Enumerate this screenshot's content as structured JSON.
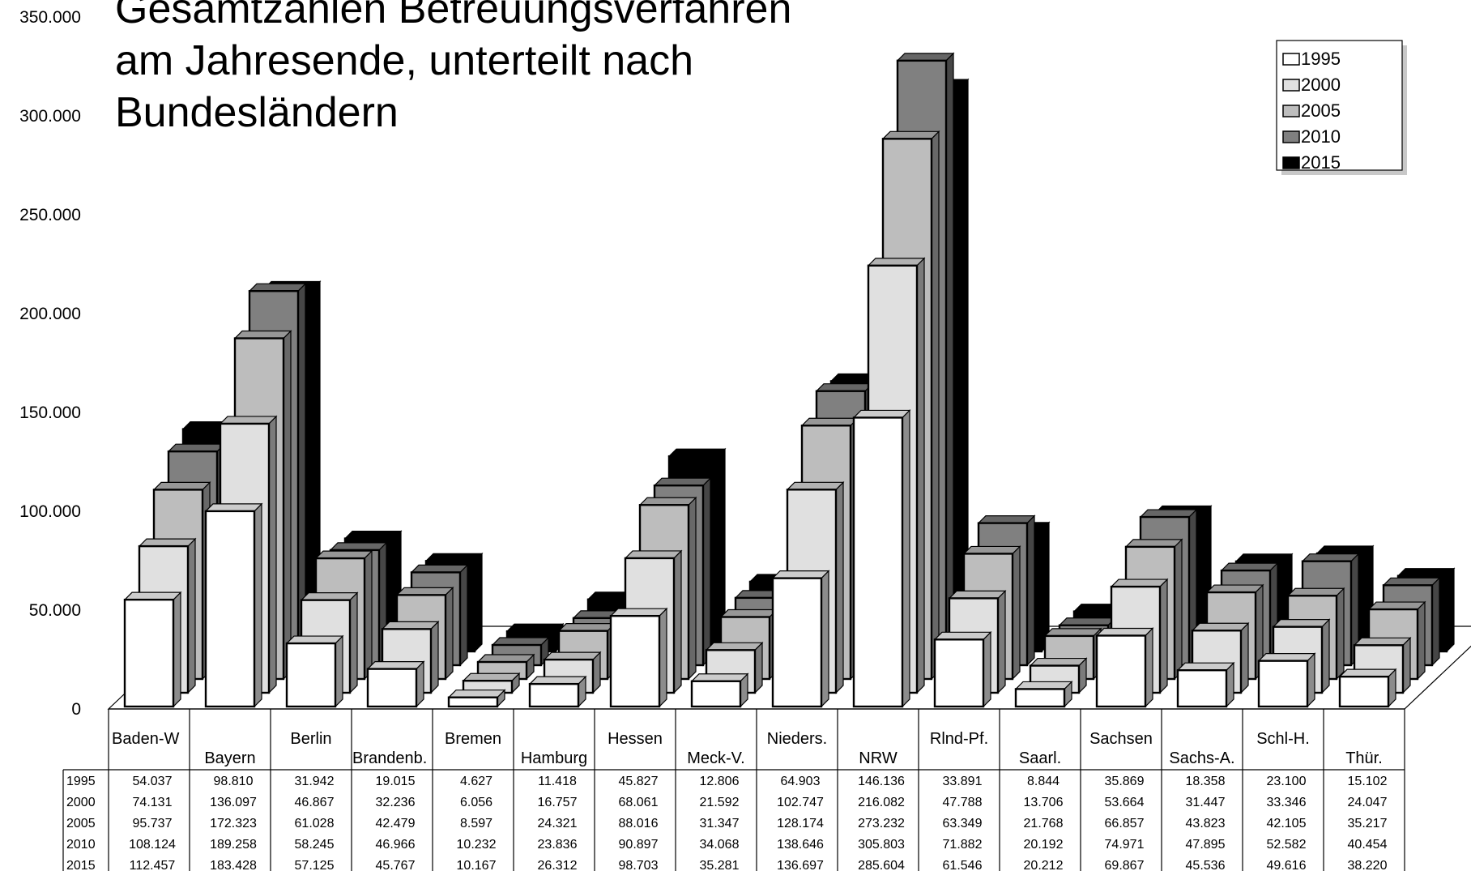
{
  "chart_data": {
    "type": "bar",
    "title": [
      "Gesamtzahlen Betreuungsverfahren",
      "am Jahresende, unterteilt nach",
      "Bundesländern"
    ],
    "categories": [
      "Baden-W",
      "Bayern",
      "Berlin",
      "Brandenb.",
      "Bremen",
      "Hamburg",
      "Hessen",
      "Meck-V.",
      "Nieders.",
      "NRW",
      "Rlnd-Pf.",
      "Saarl.",
      "Sachsen",
      "Sachs-A.",
      "Schl-H.",
      "Thür."
    ],
    "yticks": [
      "0",
      "50.000",
      "100.000",
      "150.000",
      "200.000",
      "250.000",
      "300.000",
      "350.000"
    ],
    "ylim": [
      0,
      350000
    ],
    "legend_position": "top-right",
    "series": [
      {
        "name": "1995",
        "color": "#ffffff",
        "values": [
          54037,
          98810,
          31942,
          19015,
          4627,
          11418,
          45827,
          12806,
          64903,
          146136,
          33891,
          8844,
          35869,
          18358,
          23100,
          15102
        ],
        "labels": [
          "54.037",
          "98.810",
          "31.942",
          "19.015",
          "4.627",
          "11.418",
          "45.827",
          "12.806",
          "64.903",
          "146.136",
          "33.891",
          "8.844",
          "35.869",
          "18.358",
          "23.100",
          "15.102"
        ]
      },
      {
        "name": "2000",
        "color": "#e0e0e0",
        "values": [
          74131,
          136097,
          46867,
          32236,
          6056,
          16757,
          68061,
          21592,
          102747,
          216082,
          47788,
          13706,
          53664,
          31447,
          33346,
          24047
        ],
        "labels": [
          "74.131",
          "136.097",
          "46.867",
          "32.236",
          "6.056",
          "16.757",
          "68.061",
          "21.592",
          "102.747",
          "216.082",
          "47.788",
          "13.706",
          "53.664",
          "31.447",
          "33.346",
          "24.047"
        ]
      },
      {
        "name": "2005",
        "color": "#bdbdbd",
        "values": [
          95737,
          172323,
          61028,
          42479,
          8597,
          24321,
          88016,
          31347,
          128174,
          273232,
          63349,
          21768,
          66857,
          43823,
          42105,
          35217
        ],
        "labels": [
          "95.737",
          "172.323",
          "61.028",
          "42.479",
          "8.597",
          "24.321",
          "88.016",
          "31.347",
          "128.174",
          "273.232",
          "63.349",
          "21.768",
          "66.857",
          "43.823",
          "42.105",
          "35.217"
        ]
      },
      {
        "name": "2010",
        "color": "#808080",
        "values": [
          108124,
          189258,
          58245,
          46966,
          10232,
          23836,
          90897,
          34068,
          138646,
          305803,
          71882,
          20192,
          74971,
          47895,
          52582,
          40454
        ],
        "labels": [
          "108.124",
          "189.258",
          "58.245",
          "46.966",
          "10.232",
          "23.836",
          "90.897",
          "34.068",
          "138.646",
          "305.803",
          "71.882",
          "20.192",
          "74.971",
          "47.895",
          "52.582",
          "40.454"
        ]
      },
      {
        "name": "2015",
        "color": "#000000",
        "values": [
          112457,
          183428,
          57125,
          45767,
          10167,
          26312,
          98703,
          35281,
          136697,
          285604,
          61546,
          20212,
          69867,
          45536,
          49616,
          38220
        ],
        "labels": [
          "112.457",
          "183.428",
          "57.125",
          "45.767",
          "10.167",
          "26.312",
          "98.703",
          "35.281",
          "136.697",
          "285.604",
          "61.546",
          "20.212",
          "69.867",
          "45.536",
          "49.616",
          "38.220"
        ]
      }
    ]
  }
}
